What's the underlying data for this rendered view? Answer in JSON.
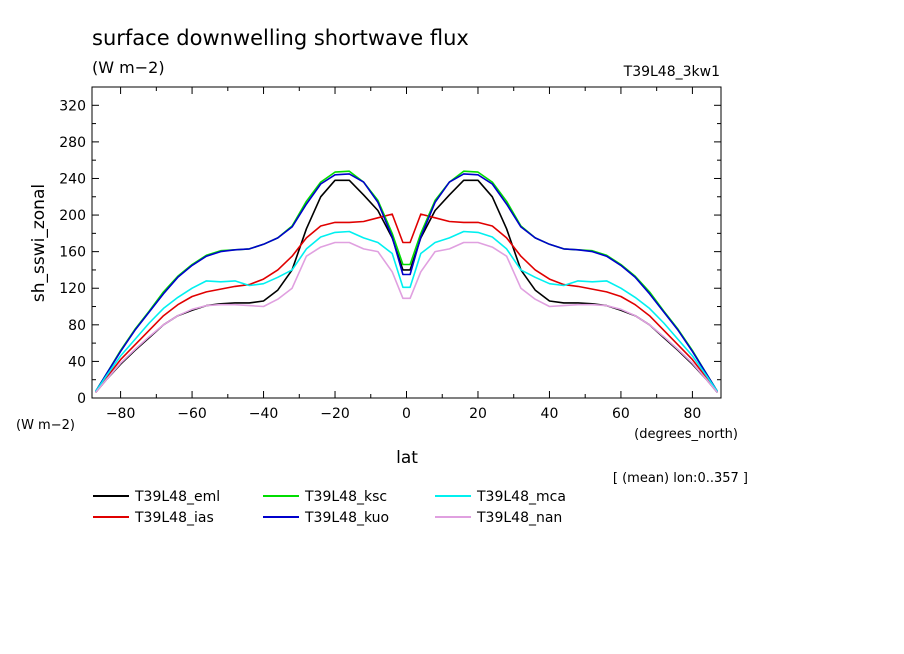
{
  "chart_data": {
    "type": "line",
    "title": "surface downwelling shortwave flux",
    "subtitle": "(W m−2)",
    "run_label": "T39L48_3kw1",
    "ylabel": "sh_sswi_zonal",
    "yunit": "(W m−2)",
    "xlabel": "lat",
    "xunit": "(degrees_north)",
    "footnote": "[ (mean) lon:0..357 ]",
    "xlim": [
      -88,
      88
    ],
    "ylim": [
      0,
      340
    ],
    "xticks": [
      -80,
      -60,
      -40,
      -20,
      0,
      20,
      40,
      60,
      80
    ],
    "xtick_labels": [
      "−80",
      "−60",
      "−40",
      "−20",
      "0",
      "20",
      "40",
      "60",
      "80"
    ],
    "yticks": [
      0,
      40,
      80,
      120,
      160,
      200,
      240,
      280,
      320
    ],
    "ytick_labels": [
      "0",
      "40",
      "80",
      "120",
      "160",
      "200",
      "240",
      "280",
      "320"
    ],
    "x": [
      -87,
      -84,
      -80,
      -76,
      -72,
      -68,
      -64,
      -60,
      -56,
      -52,
      -48,
      -44,
      -40,
      -36,
      -32,
      -28,
      -24,
      -20,
      -16,
      -12,
      -8,
      -4,
      -1,
      1,
      4,
      8,
      12,
      16,
      20,
      24,
      28,
      32,
      36,
      40,
      44,
      48,
      52,
      56,
      60,
      64,
      68,
      72,
      76,
      80,
      84,
      87
    ],
    "series": [
      {
        "name": "T39L48_eml",
        "color": "#000000",
        "values": [
          6,
          20,
          37,
          52,
          66,
          80,
          90,
          96,
          101,
          103,
          104,
          104,
          106,
          118,
          140,
          185,
          220,
          238,
          238,
          222,
          205,
          175,
          140,
          140,
          175,
          205,
          222,
          238,
          238,
          220,
          185,
          140,
          118,
          106,
          104,
          104,
          103,
          101,
          96,
          90,
          80,
          66,
          52,
          37,
          20,
          6
        ]
      },
      {
        "name": "T39L48_ias",
        "color": "#e00000",
        "values": [
          7,
          22,
          42,
          58,
          74,
          90,
          102,
          111,
          116,
          119,
          122,
          124,
          130,
          140,
          155,
          175,
          188,
          192,
          192,
          193,
          197,
          201,
          170,
          170,
          201,
          197,
          193,
          192,
          192,
          188,
          175,
          155,
          140,
          130,
          124,
          122,
          119,
          116,
          111,
          102,
          90,
          74,
          58,
          42,
          22,
          7
        ]
      },
      {
        "name": "T39L48_ksc",
        "color": "#00dd00",
        "values": [
          7,
          26,
          52,
          75,
          95,
          116,
          133,
          146,
          156,
          161,
          162,
          163,
          168,
          175,
          188,
          215,
          236,
          247,
          248,
          236,
          216,
          180,
          146,
          146,
          180,
          216,
          236,
          248,
          247,
          236,
          215,
          188,
          175,
          168,
          163,
          162,
          161,
          156,
          146,
          133,
          116,
          95,
          75,
          52,
          26,
          7
        ]
      },
      {
        "name": "T39L48_kuo",
        "color": "#0000cc",
        "values": [
          7,
          26,
          51,
          74,
          94,
          114,
          132,
          145,
          155,
          160,
          162,
          163,
          168,
          175,
          187,
          212,
          234,
          244,
          245,
          236,
          214,
          176,
          135,
          135,
          176,
          214,
          236,
          245,
          244,
          234,
          212,
          187,
          175,
          168,
          163,
          162,
          160,
          155,
          145,
          132,
          114,
          94,
          74,
          51,
          26,
          7
        ]
      },
      {
        "name": "T39L48_mca",
        "color": "#00f0f0",
        "values": [
          7,
          24,
          46,
          64,
          82,
          98,
          110,
          120,
          128,
          127,
          128,
          123,
          125,
          132,
          140,
          163,
          176,
          181,
          182,
          175,
          170,
          158,
          121,
          121,
          158,
          170,
          175,
          182,
          181,
          176,
          163,
          140,
          132,
          125,
          123,
          128,
          127,
          128,
          120,
          110,
          98,
          82,
          64,
          46,
          24,
          7
        ]
      },
      {
        "name": "T39L48_nan",
        "color": "#e0a0e0",
        "values": [
          6,
          20,
          38,
          53,
          67,
          80,
          90,
          97,
          101,
          102,
          102,
          101,
          100,
          108,
          120,
          155,
          165,
          170,
          170,
          163,
          160,
          138,
          109,
          109,
          138,
          160,
          163,
          170,
          170,
          165,
          155,
          120,
          108,
          100,
          101,
          102,
          102,
          101,
          97,
          90,
          80,
          67,
          53,
          38,
          20,
          6
        ]
      }
    ]
  }
}
